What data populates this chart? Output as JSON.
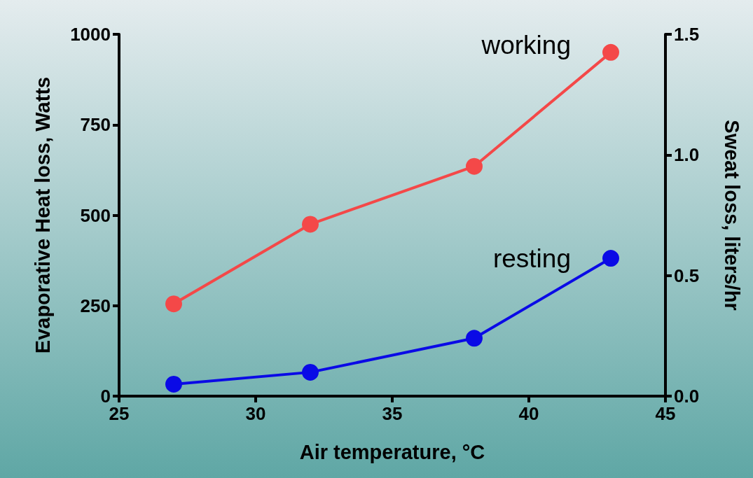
{
  "chart_data": {
    "type": "line",
    "xlabel": "Air temperature, °C",
    "ylabel": "Evaporative Heat loss, Watts",
    "y2label": "Sweat loss, liters/hr",
    "x": [
      27,
      32,
      38,
      43
    ],
    "series": [
      {
        "name": "working",
        "color": "#f44848",
        "values": [
          255,
          475,
          635,
          950
        ]
      },
      {
        "name": "resting",
        "color": "#0a0ae6",
        "values": [
          33,
          66,
          160,
          381
        ]
      }
    ],
    "xlim": [
      25,
      45
    ],
    "xticks": [
      25,
      30,
      35,
      40,
      45
    ],
    "ylim": [
      0,
      1000
    ],
    "yticks": [
      0,
      250,
      500,
      750,
      1000
    ],
    "y2lim": [
      0,
      1.5
    ],
    "y2ticks": [
      {
        "value": 0,
        "label": "0.0"
      },
      {
        "value": 0.5,
        "label": "0.5"
      },
      {
        "value": 1,
        "label": "1.0"
      },
      {
        "value": 1.5,
        "label": "1.5"
      }
    ],
    "grid": false,
    "legend": false,
    "marker": "circle",
    "line_style": "solid"
  }
}
